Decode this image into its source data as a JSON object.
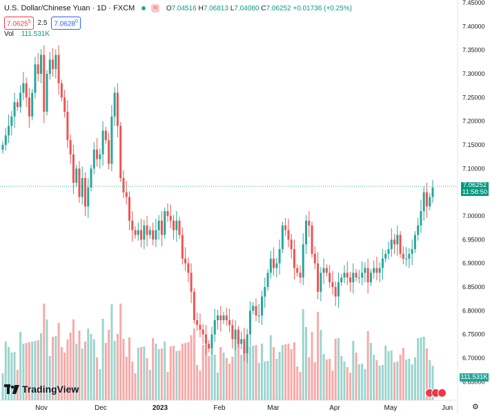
{
  "header": {
    "title": "U.S. Dollar/Chinese Yuan · 1D · FXCM",
    "badge": "≈",
    "open_label": "O",
    "open": "7.04516",
    "high_label": "H",
    "high": "7.06813",
    "low_label": "L",
    "low": "7.04080",
    "close_label": "C",
    "close": "7.06252",
    "change": "+0.01736 (+0.25%)"
  },
  "trade": {
    "sell": "7.0625",
    "sell_sup": "5",
    "spread": "2.5",
    "buy": "7.0628",
    "buy_sup": "0"
  },
  "volume": {
    "label": "Vol",
    "value": "111.531K"
  },
  "last_price": {
    "value": "7.06252",
    "countdown": "11:58:50"
  },
  "volume_tag": "111.531K",
  "branding": "TradingView",
  "colors": {
    "up": "#26a69a",
    "down": "#ef5350",
    "vol_up": "#9bd4ce",
    "vol_down": "#f7a9a7"
  },
  "chart_data": {
    "type": "candlestick",
    "title": "U.S. Dollar/Chinese Yuan · 1D · FXCM",
    "ylim": [
      6.63,
      7.45
    ],
    "y_ticks": [
      "7.45000",
      "7.40000",
      "7.35000",
      "7.30000",
      "7.25000",
      "7.20000",
      "7.15000",
      "7.10000",
      "7.05000",
      "7.00000",
      "6.95000",
      "6.90000",
      "6.85000",
      "6.80000",
      "6.75000",
      "6.70000",
      "6.65000"
    ],
    "x_ticks": [
      "Nov",
      "Dec",
      "2023",
      "Feb",
      "Mar",
      "Apr",
      "May",
      "Jun"
    ],
    "series_close": [
      7.15,
      7.17,
      7.19,
      7.21,
      7.24,
      7.23,
      7.26,
      7.28,
      7.25,
      7.21,
      7.26,
      7.32,
      7.3,
      7.34,
      7.22,
      7.3,
      7.33,
      7.31,
      7.34,
      7.28,
      7.25,
      7.22,
      7.16,
      7.13,
      7.07,
      7.1,
      7.04,
      7.08,
      7.02,
      7.06,
      7.1,
      7.14,
      7.12,
      7.13,
      7.18,
      7.16,
      7.11,
      7.21,
      7.26,
      7.19,
      7.08,
      7.05,
      7.04,
      6.99,
      6.97,
      6.96,
      6.97,
      6.95,
      6.98,
      6.96,
      6.97,
      6.95,
      6.97,
      6.99,
      6.96,
      7.01,
      7.0,
      6.99,
      6.97,
      6.99,
      6.96,
      6.91,
      6.9,
      6.88,
      6.84,
      6.78,
      6.77,
      6.76,
      6.75,
      6.73,
      6.72,
      6.75,
      6.78,
      6.79,
      6.78,
      6.79,
      6.78,
      6.77,
      6.74,
      6.76,
      6.73,
      6.74,
      6.71,
      6.75,
      6.8,
      6.81,
      6.79,
      6.79,
      6.83,
      6.85,
      6.88,
      6.91,
      6.89,
      6.9,
      6.93,
      6.98,
      6.97,
      6.95,
      6.93,
      6.89,
      6.88,
      6.87,
      6.94,
      6.99,
      6.98,
      6.92,
      6.9,
      6.84,
      6.88,
      6.89,
      6.88,
      6.86,
      6.85,
      6.83,
      6.86,
      6.87,
      6.88,
      6.87,
      6.86,
      6.88,
      6.87,
      6.87,
      6.88,
      6.89,
      6.86,
      6.88,
      6.89,
      6.88,
      6.89,
      6.91,
      6.92,
      6.93,
      6.95,
      6.94,
      6.96,
      6.92,
      6.91,
      6.91,
      6.92,
      6.93,
      6.96,
      6.98,
      7.01,
      7.05,
      7.02,
      7.04,
      7.06
    ],
    "volume_ticks_unit": "K"
  }
}
